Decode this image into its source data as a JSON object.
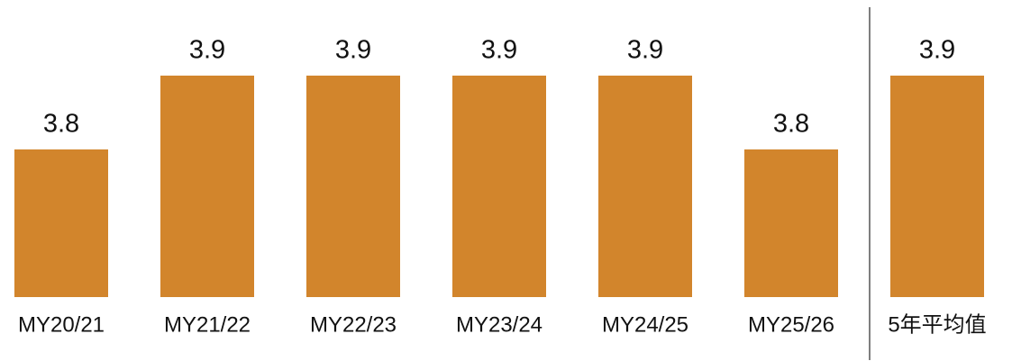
{
  "chart_data": {
    "type": "bar",
    "categories": [
      "MY20/21",
      "MY21/22",
      "MY22/23",
      "MY23/24",
      "MY24/25",
      "MY25/26",
      "5年平均值"
    ],
    "values": [
      3.8,
      3.9,
      3.9,
      3.9,
      3.9,
      3.8,
      3.9
    ],
    "color": "#d2852c",
    "ylim": [
      3.6,
      4.0
    ]
  }
}
